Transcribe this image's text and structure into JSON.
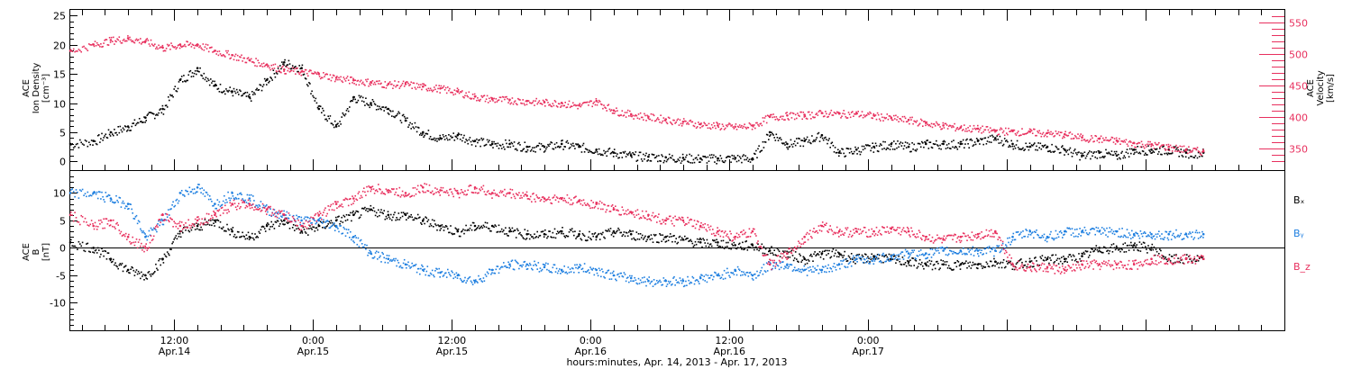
{
  "colors": {
    "black": "#000000",
    "red": "#e8305e",
    "blue": "#1e7fe0"
  },
  "chart_data": [
    {
      "type": "scatter",
      "panel": "top",
      "x_unit": "hours since 2013-04-13 00:00",
      "xlim": [
        27,
        132
      ],
      "left_axis": {
        "label_lines": [
          "ACE",
          "Ion Density",
          "[cm⁻³]"
        ],
        "ylim": [
          -1.5,
          26
        ],
        "ticks": [
          0,
          5,
          10,
          15,
          20,
          25
        ]
      },
      "right_axis": {
        "label_lines": [
          "ACE",
          "Velocity",
          "[km/s]"
        ],
        "ylim": [
          315,
          570
        ],
        "ticks": [
          350,
          400,
          450,
          500,
          550
        ],
        "color": "#e8305e"
      },
      "series": [
        {
          "axis": "left",
          "color": "#000000",
          "x": [
            27,
            29,
            30.5,
            32,
            33.5,
            35,
            36.5,
            38,
            39.5,
            41,
            42.5,
            44,
            45.5,
            47,
            48.5,
            50,
            51.5,
            53,
            54.5,
            56,
            57.5,
            59,
            60.5,
            62,
            63.5,
            65,
            66.5,
            68,
            69.5,
            71,
            72.5,
            74,
            75.5,
            77,
            78.5,
            80,
            81.5,
            83,
            84.5,
            86,
            87.5,
            89,
            90.5,
            92,
            93.5,
            95,
            96.5,
            98,
            99.5,
            101,
            102.5,
            104,
            105.5,
            107,
            108.5,
            110,
            111.5,
            113,
            114.5,
            116,
            117.5,
            119,
            120.5,
            122,
            123.5,
            125
          ],
          "y": [
            3,
            3.5,
            5,
            6,
            7.5,
            9,
            14,
            16,
            13,
            12,
            11,
            14,
            17,
            16,
            9,
            6,
            11,
            10,
            9,
            7,
            5,
            4,
            4.5,
            3.5,
            3,
            3,
            2.5,
            2.5,
            3,
            2.5,
            2,
            1.5,
            1,
            0.8,
            0.7,
            0.6,
            0.5,
            0.5,
            0.6,
            0.5,
            5,
            3,
            3.5,
            4.5,
            1.5,
            2,
            2.5,
            3,
            2.5,
            3,
            3,
            3,
            3.5,
            4,
            3,
            2.5,
            2.5,
            2,
            1,
            1.5,
            1,
            2,
            2,
            2,
            1.5,
            1.5
          ]
        },
        {
          "axis": "right",
          "color": "#e8305e",
          "x": [
            27,
            29,
            30.5,
            32,
            33.5,
            35,
            36.5,
            38,
            39.5,
            41,
            42.5,
            44,
            45.5,
            47,
            48.5,
            50,
            51.5,
            53,
            54.5,
            56,
            57.5,
            59,
            60.5,
            62,
            63.5,
            65,
            66.5,
            68,
            69.5,
            71,
            72.5,
            74,
            75.5,
            77,
            78.5,
            80,
            81.5,
            83,
            84.5,
            86,
            87.5,
            89,
            90.5,
            92,
            93.5,
            95,
            96.5,
            98,
            99.5,
            101,
            102.5,
            104,
            105.5,
            107,
            108.5,
            110,
            111.5,
            113,
            114.5,
            116,
            117.5,
            119,
            120.5,
            122,
            123.5,
            125
          ],
          "y": [
            505,
            515,
            522,
            525,
            520,
            510,
            515,
            515,
            505,
            498,
            490,
            483,
            475,
            472,
            468,
            462,
            458,
            455,
            452,
            452,
            448,
            445,
            440,
            432,
            428,
            427,
            425,
            423,
            422,
            418,
            425,
            410,
            404,
            400,
            396,
            392,
            388,
            386,
            384,
            386,
            400,
            402,
            403,
            406,
            405,
            405,
            402,
            398,
            395,
            390,
            386,
            383,
            381,
            378,
            377,
            376,
            374,
            372,
            367,
            365,
            362,
            358,
            356,
            352,
            348,
            345
          ]
        }
      ]
    },
    {
      "type": "scatter",
      "panel": "bottom",
      "x_unit": "hours since 2013-04-13 00:00",
      "xlim": [
        27,
        132
      ],
      "left_axis": {
        "label_lines": [
          "ACE",
          "B",
          "[nT]"
        ],
        "ylim": [
          -15,
          14
        ],
        "ticks": [
          -10,
          -5,
          0,
          5,
          10
        ]
      },
      "zero_line": true,
      "series": [
        {
          "name": "Bₓ",
          "color": "#000000",
          "x": [
            27,
            29,
            30.5,
            32,
            33.5,
            35,
            36.5,
            38,
            39.5,
            41,
            42.5,
            44,
            45.5,
            47,
            48.5,
            50,
            51.5,
            53,
            54.5,
            56,
            57.5,
            59,
            60.5,
            62,
            63.5,
            65,
            66.5,
            68,
            69.5,
            71,
            72.5,
            74,
            75.5,
            77,
            78.5,
            80,
            81.5,
            83,
            84.5,
            86,
            87.5,
            89,
            90.5,
            92,
            93.5,
            95,
            96.5,
            98,
            99.5,
            101,
            102.5,
            104,
            105.5,
            107,
            108.5,
            110,
            111.5,
            113,
            114.5,
            116,
            117.5,
            119,
            120.5,
            122,
            123.5,
            125
          ],
          "y": [
            1,
            0,
            -2,
            -4,
            -5,
            -2,
            3,
            4,
            5,
            3,
            2,
            4,
            5,
            3,
            4,
            5,
            6,
            7,
            6,
            6,
            5,
            4,
            3,
            4,
            4,
            3,
            2.5,
            2.5,
            3,
            2.5,
            2,
            3,
            2.5,
            2,
            2,
            1.5,
            1,
            1,
            0.5,
            0.5,
            -0.5,
            -1,
            -2,
            -1,
            -1,
            -2,
            -1.5,
            -2,
            -2.5,
            -3,
            -3,
            -3,
            -3,
            -2.5,
            -3,
            -2.5,
            -2,
            -2,
            -1.5,
            0,
            0,
            0.5,
            0,
            -2,
            -2,
            -2
          ]
        },
        {
          "name": "Bᵧ",
          "color": "#1e7fe0",
          "x": [
            27,
            29,
            30.5,
            32,
            33.5,
            35,
            36.5,
            38,
            39.5,
            41,
            42.5,
            44,
            45.5,
            47,
            48.5,
            50,
            51.5,
            53,
            54.5,
            56,
            57.5,
            59,
            60.5,
            62,
            63.5,
            65,
            66.5,
            68,
            69.5,
            71,
            72.5,
            74,
            75.5,
            77,
            78.5,
            80,
            81.5,
            83,
            84.5,
            86,
            87.5,
            89,
            90.5,
            92,
            93.5,
            95,
            96.5,
            98,
            99.5,
            101,
            102.5,
            104,
            105.5,
            107,
            108.5,
            110,
            111.5,
            113,
            114.5,
            116,
            117.5,
            119,
            120.5,
            122,
            123.5,
            125
          ],
          "y": [
            10,
            10,
            9,
            8,
            2,
            5,
            10,
            11,
            8,
            10,
            9,
            7,
            6,
            5,
            5,
            4,
            2,
            -1,
            -2,
            -3,
            -4,
            -4.5,
            -5,
            -6,
            -4,
            -3,
            -3,
            -3.5,
            -4,
            -3.5,
            -4,
            -5,
            -5.5,
            -6,
            -6,
            -6,
            -5.5,
            -5,
            -4,
            -5,
            -3,
            -3,
            -4,
            -4,
            -3,
            -2,
            -2,
            -1.5,
            -1,
            -1,
            -0.5,
            -0.5,
            -0.5,
            -0.5,
            2,
            3,
            2,
            3,
            3,
            3,
            3,
            2.5,
            2.5,
            2.5,
            2.5,
            2.5
          ]
        },
        {
          "name": "B_z",
          "color": "#e8305e",
          "x": [
            27,
            29,
            30.5,
            32,
            33.5,
            35,
            36.5,
            38,
            39.5,
            41,
            42.5,
            44,
            45.5,
            47,
            48.5,
            50,
            51.5,
            53,
            54.5,
            56,
            57.5,
            59,
            60.5,
            62,
            63.5,
            65,
            66.5,
            68,
            69.5,
            71,
            72.5,
            74,
            75.5,
            77,
            78.5,
            80,
            81.5,
            83,
            84.5,
            86,
            87.5,
            89,
            90.5,
            92,
            93.5,
            95,
            96.5,
            98,
            99.5,
            101,
            102.5,
            104,
            105.5,
            107,
            108.5,
            110,
            111.5,
            113,
            114.5,
            116,
            117.5,
            119,
            120.5,
            122,
            123.5,
            125
          ],
          "y": [
            6,
            4,
            5,
            2,
            0,
            6,
            4,
            5,
            6,
            8,
            8,
            7,
            6,
            4,
            6,
            8,
            9,
            11,
            10.5,
            10,
            11,
            10.5,
            10,
            11,
            10,
            10,
            9.5,
            9,
            9,
            8.5,
            8,
            7,
            6.5,
            6,
            5,
            5,
            4,
            3,
            2,
            3,
            -3,
            -1,
            2,
            4,
            3,
            3,
            3,
            3.5,
            3,
            2,
            1.5,
            2,
            2.5,
            3,
            -3,
            -3.5,
            -3.5,
            -4,
            -3,
            -3,
            -3,
            -3,
            -2,
            -2,
            -2,
            -2
          ]
        }
      ],
      "legend": {
        "placement": "right",
        "labels": [
          "Bₓ",
          "Bᵧ",
          "B_z"
        ]
      }
    }
  ],
  "x_axis": {
    "ticks": [
      {
        "x": 36,
        "time": "12:00",
        "date": "Apr.14"
      },
      {
        "x": 48,
        "time": "0:00",
        "date": "Apr.15"
      },
      {
        "x": 60,
        "time": "12:00",
        "date": "Apr.15"
      },
      {
        "x": 72,
        "time": "0:00",
        "date": "Apr.16"
      },
      {
        "x": 84,
        "time": "12:00",
        "date": "Apr.16"
      },
      {
        "x": 96,
        "time": "0:00",
        "date": "Apr.17"
      }
    ],
    "label": "hours:minutes, Apr. 14, 2013 - Apr. 17, 2013"
  }
}
